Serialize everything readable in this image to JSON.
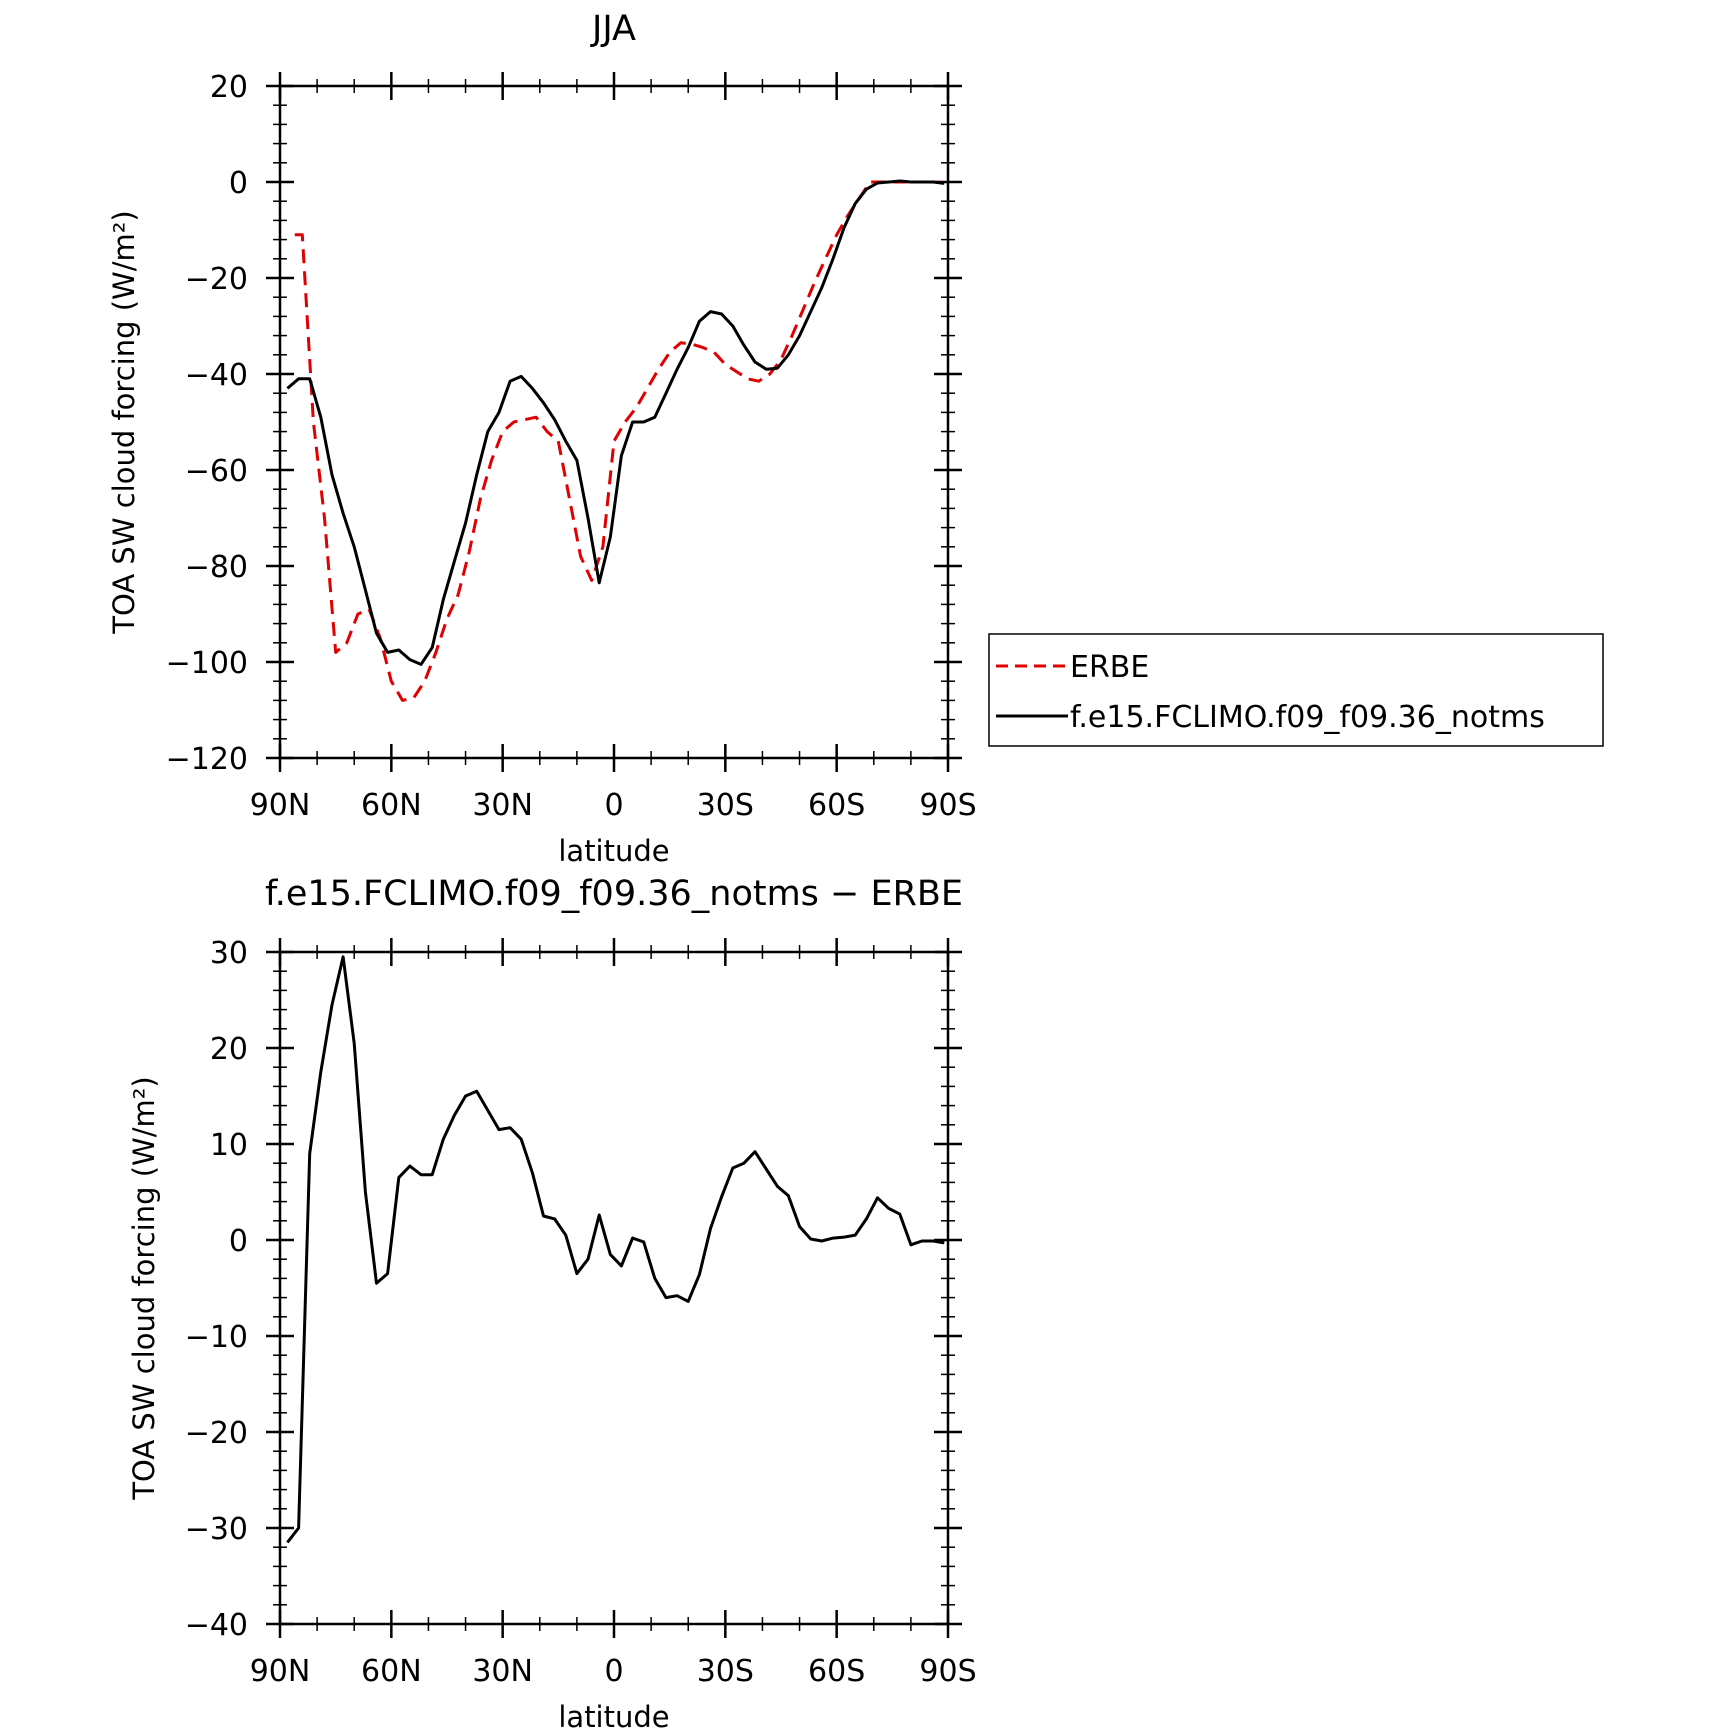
{
  "chart_data": [
    {
      "type": "line",
      "title": "JJA",
      "xlabel": "latitude",
      "ylabel": "TOA SW cloud forcing (W/m²)",
      "xlim": [
        -90,
        90
      ],
      "ylim": [
        -120,
        20
      ],
      "x_ticks": [
        {
          "value": -90,
          "label": "90N"
        },
        {
          "value": -60,
          "label": "60N"
        },
        {
          "value": -30,
          "label": "30N"
        },
        {
          "value": 0,
          "label": "0"
        },
        {
          "value": 30,
          "label": "30S"
        },
        {
          "value": 60,
          "label": "60S"
        },
        {
          "value": 90,
          "label": "90S"
        }
      ],
      "y_ticks": [
        {
          "value": 20,
          "label": "20"
        },
        {
          "value": 0,
          "label": "0"
        },
        {
          "value": -20,
          "label": "−20"
        },
        {
          "value": -40,
          "label": "−40"
        },
        {
          "value": -60,
          "label": "−60"
        },
        {
          "value": -80,
          "label": "−80"
        },
        {
          "value": -100,
          "label": "−100"
        },
        {
          "value": -120,
          "label": "−120"
        }
      ],
      "legend": "right",
      "series": [
        {
          "name": "ERBE",
          "color": "#e00000",
          "dash": true,
          "x": [
            -86,
            -84,
            -81,
            -78,
            -75,
            -72,
            -69,
            -66,
            -63,
            -60,
            -57,
            -54,
            -51,
            -48,
            -45,
            -42,
            -39,
            -36,
            -33,
            -30,
            -27,
            -24,
            -21,
            -18,
            -15,
            -12,
            -9,
            -6,
            -3,
            0,
            3,
            6,
            9,
            12,
            15,
            18,
            21,
            24,
            27,
            30,
            33,
            36,
            39,
            42,
            45,
            48,
            51,
            54,
            57,
            60,
            63,
            66,
            69,
            72,
            75,
            78,
            81,
            84,
            88
          ],
          "values": [
            -11,
            -11,
            -50,
            -70,
            -98,
            -96,
            -90,
            -89,
            -95,
            -104,
            -108,
            -107.5,
            -104,
            -98,
            -91,
            -86,
            -77,
            -66,
            -58,
            -52,
            -50,
            -49.5,
            -49,
            -52,
            -54,
            -66,
            -78,
            -83,
            -76,
            -54,
            -50,
            -47,
            -43,
            -39,
            -35.5,
            -33.5,
            -33.8,
            -34.5,
            -35.5,
            -38,
            -39.5,
            -41,
            -41.5,
            -40,
            -37,
            -32,
            -26.5,
            -21,
            -16,
            -11,
            -7,
            -3.5,
            0,
            0,
            0,
            0,
            0,
            0,
            0
          ]
        },
        {
          "name": "f.e15.FCLIMO.f09_f09.36_notms",
          "color": "#000000",
          "dash": false,
          "x": [
            -88,
            -85,
            -82,
            -79,
            -76,
            -73,
            -70,
            -67,
            -64,
            -61,
            -58,
            -55,
            -52,
            -49,
            -46,
            -43,
            -40,
            -37,
            -34,
            -31,
            -28,
            -25,
            -22,
            -19,
            -16,
            -13,
            -10,
            -7,
            -4,
            -1,
            2,
            5,
            8,
            11,
            14,
            17,
            20,
            23,
            26,
            29,
            32,
            35,
            38,
            41,
            44,
            47,
            50,
            53,
            56,
            59,
            62,
            65,
            68,
            71,
            74,
            77,
            80,
            83,
            86,
            89
          ],
          "values": [
            -43,
            -41,
            -41,
            -49,
            -61,
            -69,
            -76,
            -85,
            -94,
            -98,
            -97.5,
            -99.5,
            -100.5,
            -97,
            -87,
            -79,
            -71,
            -61,
            -52,
            -48,
            -41.5,
            -40.5,
            -43,
            -46,
            -49.5,
            -54,
            -58,
            -70,
            -83.5,
            -74,
            -57,
            -50,
            -50,
            -49,
            -44,
            -39,
            -34.5,
            -29,
            -27,
            -27.5,
            -30,
            -34,
            -37.5,
            -39,
            -38.8,
            -36,
            -32,
            -27,
            -22,
            -16,
            -9.5,
            -4.5,
            -1.5,
            -0.2,
            0,
            0.2,
            0,
            0,
            0,
            -0.3
          ]
        }
      ]
    },
    {
      "type": "line",
      "title": "f.e15.FCLIMO.f09_f09.36_notms − ERBE",
      "xlabel": "latitude",
      "ylabel": "TOA SW cloud forcing (W/m²)",
      "xlim": [
        -90,
        90
      ],
      "ylim": [
        -40,
        30
      ],
      "x_ticks": [
        {
          "value": -90,
          "label": "90N"
        },
        {
          "value": -60,
          "label": "60N"
        },
        {
          "value": -30,
          "label": "30N"
        },
        {
          "value": 0,
          "label": "0"
        },
        {
          "value": 30,
          "label": "30S"
        },
        {
          "value": 60,
          "label": "60S"
        },
        {
          "value": 90,
          "label": "90S"
        }
      ],
      "y_ticks": [
        {
          "value": 30,
          "label": "30"
        },
        {
          "value": 20,
          "label": "20"
        },
        {
          "value": 10,
          "label": "10"
        },
        {
          "value": 0,
          "label": "0"
        },
        {
          "value": -10,
          "label": "−10"
        },
        {
          "value": -20,
          "label": "−20"
        },
        {
          "value": -30,
          "label": "−30"
        },
        {
          "value": -40,
          "label": "−40"
        }
      ],
      "series": [
        {
          "color": "#000000",
          "dash": false,
          "x": [
            -88,
            -85,
            -82,
            -79,
            -76,
            -73,
            -70,
            -67,
            -64,
            -61,
            -58,
            -55,
            -52,
            -49,
            -46,
            -43,
            -40,
            -37,
            -34,
            -31,
            -28,
            -25,
            -22,
            -19,
            -16,
            -13,
            -10,
            -7,
            -4,
            -1,
            2,
            5,
            8,
            11,
            14,
            17,
            20,
            23,
            26,
            29,
            32,
            35,
            38,
            41,
            44,
            47,
            50,
            53,
            56,
            59,
            62,
            65,
            68,
            71,
            74,
            77,
            80,
            83,
            86,
            89
          ],
          "values": [
            -31.5,
            -30,
            9,
            17.5,
            24.5,
            29.5,
            20.5,
            5,
            -4.5,
            -3.5,
            6.5,
            7.7,
            6.8,
            6.8,
            10.5,
            13,
            15,
            15.5,
            13.5,
            11.5,
            11.7,
            10.5,
            7,
            2.5,
            2.2,
            0.5,
            -3.5,
            -2,
            2.6,
            -1.5,
            -2.7,
            0.2,
            -0.2,
            -4,
            -6,
            -5.8,
            -6.4,
            -3.6,
            1.2,
            4.5,
            7.5,
            8,
            9.2,
            7.4,
            5.6,
            4.6,
            1.4,
            0.1,
            -0.1,
            0.2,
            0.3,
            0.5,
            2.2,
            4.4,
            3.3,
            2.7,
            -0.5,
            -0.1,
            -0.1,
            -0.3
          ]
        }
      ]
    }
  ]
}
